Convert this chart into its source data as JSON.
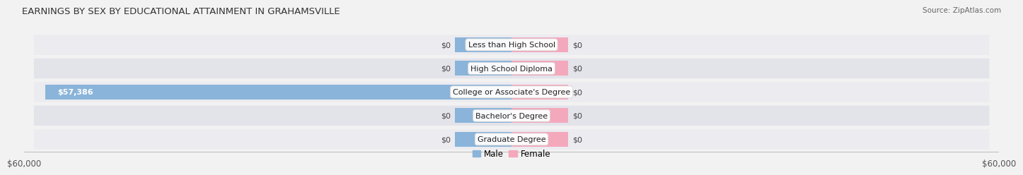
{
  "title": "EARNINGS BY SEX BY EDUCATIONAL ATTAINMENT IN GRAHAMSVILLE",
  "source": "Source: ZipAtlas.com",
  "categories": [
    "Less than High School",
    "High School Diploma",
    "College or Associate's Degree",
    "Bachelor's Degree",
    "Graduate Degree"
  ],
  "male_values": [
    0,
    0,
    57386,
    0,
    0
  ],
  "female_values": [
    0,
    0,
    0,
    0,
    0
  ],
  "male_labels": [
    "$0",
    "$0",
    "$57,386",
    "$0",
    "$0"
  ],
  "female_labels": [
    "$0",
    "$0",
    "$0",
    "$0",
    "$0"
  ],
  "male_color": "#8ab4d9",
  "female_color": "#f4a8bc",
  "xlim": 60000,
  "xlabel_left": "$60,000",
  "xlabel_right": "$60,000",
  "title_fontsize": 9.5,
  "label_fontsize": 8,
  "tick_fontsize": 8.5,
  "source_fontsize": 7.5,
  "male_legend": "Male",
  "female_legend": "Female",
  "stub_bar_width": 7000,
  "background_color": "#f2f2f2",
  "row_colors": [
    "#ebebf0",
    "#e3e3ea"
  ]
}
